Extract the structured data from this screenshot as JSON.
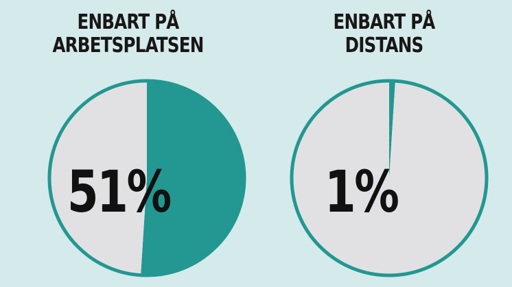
{
  "colors": {
    "background": "#d4eaeb",
    "accent": "#239791",
    "remainder": "#e1e1e3",
    "text": "#1a1617"
  },
  "chart_data": [
    {
      "type": "pie",
      "title_lines": [
        "ENBART PÅ",
        "ARBETSPLATSEN"
      ],
      "value": 51,
      "label": "51%",
      "slices": [
        {
          "value": 51,
          "color": "#239791"
        },
        {
          "value": 49,
          "color": "#e1e1e3"
        }
      ]
    },
    {
      "type": "pie",
      "title_lines": [
        "ENBART PÅ",
        "DISTANS"
      ],
      "value": 1,
      "label": "1%",
      "slices": [
        {
          "value": 1,
          "color": "#239791"
        },
        {
          "value": 99,
          "color": "#e1e1e3"
        }
      ]
    }
  ]
}
